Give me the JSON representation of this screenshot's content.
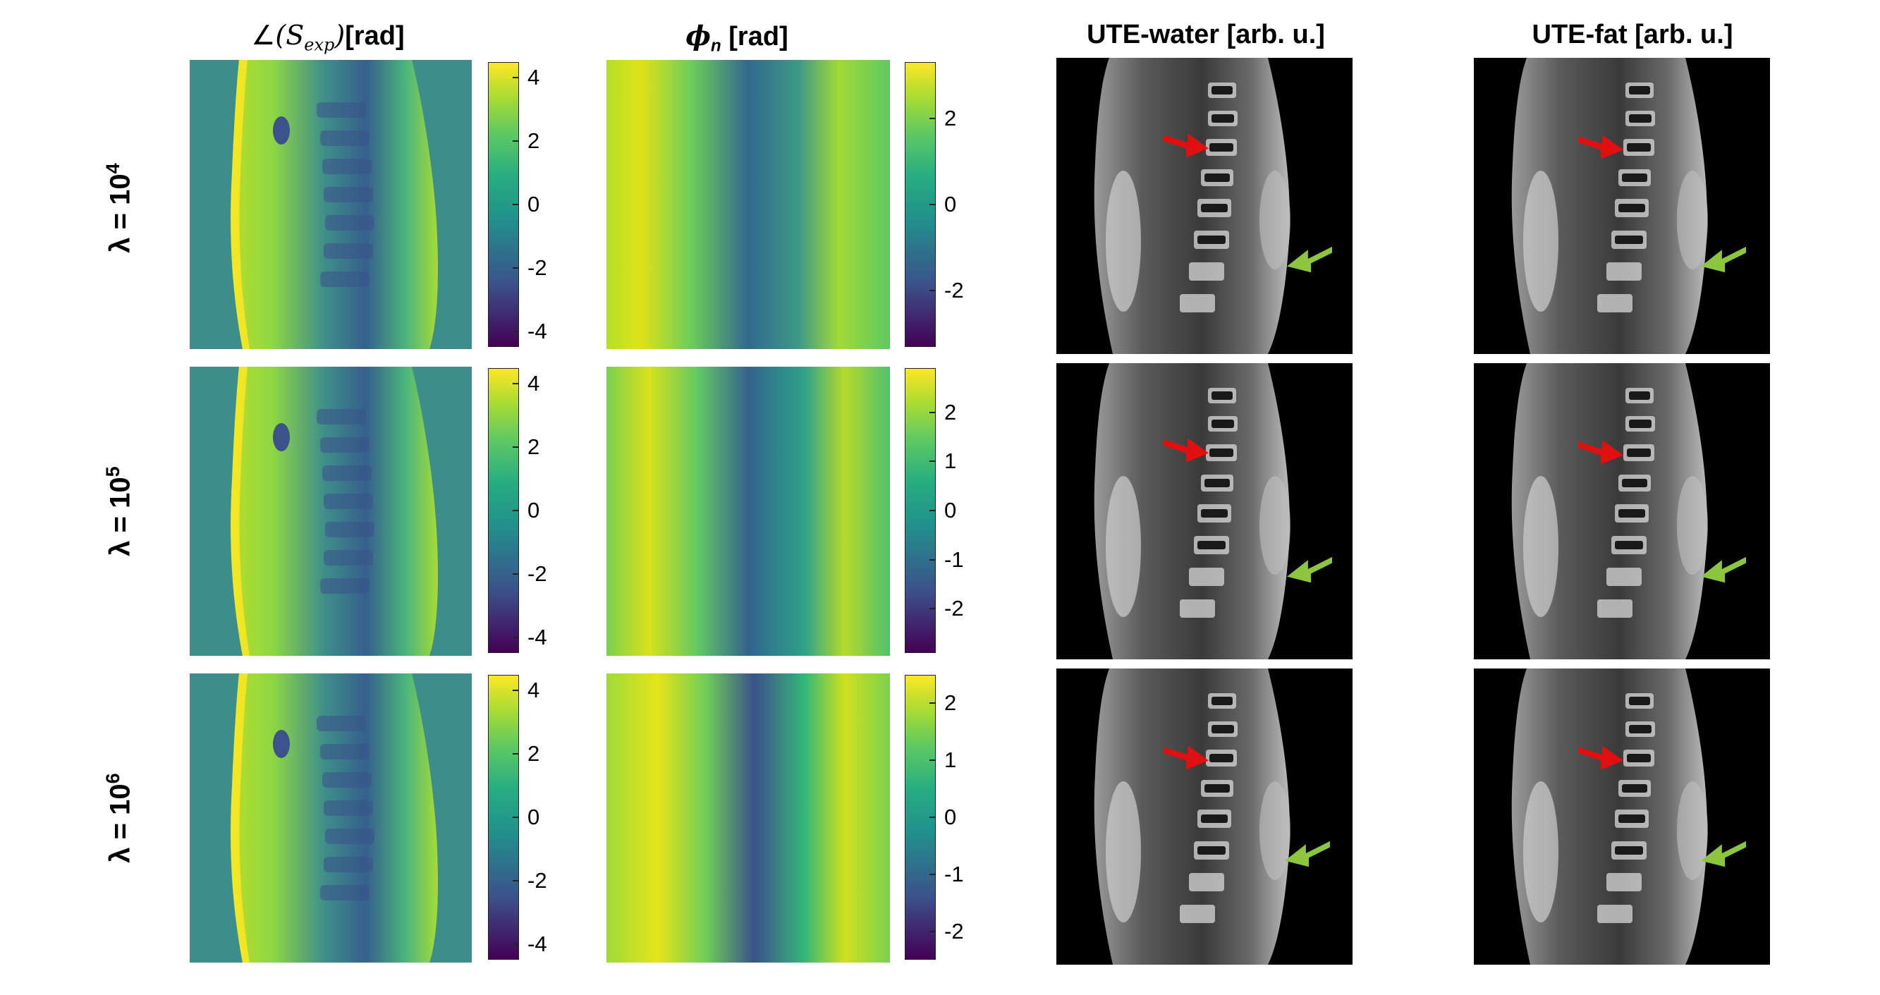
{
  "columns": {
    "angle_title_symbol": "∠",
    "angle_title_var": "S",
    "angle_title_sub": "exp",
    "angle_title_unit": "[rad]",
    "phi_title_var": "ϕ",
    "phi_title_sub": "n",
    "phi_title_unit": "[rad]",
    "water_title": "UTE-water [arb. u.]",
    "fat_title": "UTE-fat [arb. u.]"
  },
  "rows": [
    {
      "label_base": "λ = 10",
      "label_exp": "4"
    },
    {
      "label_base": "λ = 10",
      "label_exp": "5"
    },
    {
      "label_base": "λ = 10",
      "label_exp": "6"
    }
  ],
  "colorbars": {
    "angle": {
      "ticks": [
        "4",
        "2",
        "0",
        "-2",
        "-4"
      ],
      "range": [
        -4.5,
        4.5
      ]
    },
    "phi_row1": {
      "ticks": [
        "2",
        "0",
        "-2"
      ],
      "range": [
        -3.3,
        3.3
      ]
    },
    "phi_row2": {
      "ticks": [
        "2",
        "1",
        "0",
        "-1",
        "-2"
      ],
      "range": [
        -2.9,
        2.9
      ]
    },
    "phi_row3": {
      "ticks": [
        "2",
        "1",
        "0",
        "-1",
        "-2"
      ],
      "range": [
        -2.5,
        2.5
      ]
    }
  },
  "colors": {
    "viridis_low": "#440154",
    "viridis_mid": "#21918c",
    "viridis_high": "#fde725",
    "red_arrow": "#e01010",
    "green_arrow": "#8cc63f"
  },
  "icons": {
    "red_arrow": "arrow-icon",
    "green_arrow": "arrow-icon"
  }
}
